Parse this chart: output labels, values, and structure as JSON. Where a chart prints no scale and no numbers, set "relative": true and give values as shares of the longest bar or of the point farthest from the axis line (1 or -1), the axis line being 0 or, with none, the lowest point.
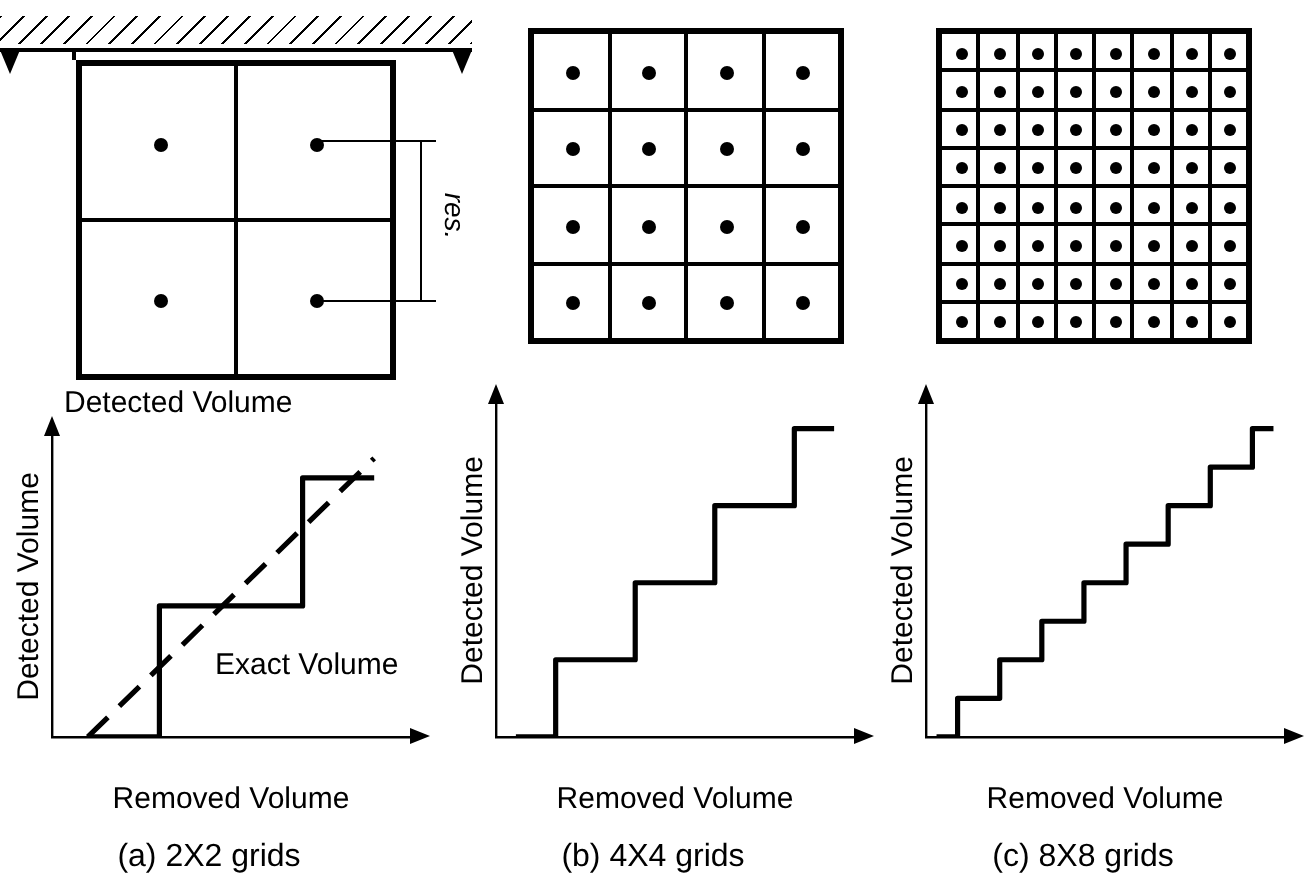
{
  "chart_data": [
    {
      "type": "step",
      "title": "(a) 2X2 grids",
      "xlabel": "Removed Volume",
      "ylabel": "Detected Volume",
      "relative": true,
      "annotations": [
        "res."
      ],
      "categories": [
        null,
        null,
        null,
        null,
        null
      ],
      "series": [
        {
          "name": "Detected Volume",
          "color": "#000000",
          "values": [
            0,
            0.47,
            0.47,
            0.93,
            0.93
          ]
        },
        {
          "name": "Exact Volume",
          "type": "line",
          "line_style": "dashed",
          "color": "#000000",
          "values": [
            0,
            0.25,
            0.5,
            0.75,
            1
          ]
        }
      ]
    },
    {
      "type": "step",
      "title": "(b) 4X4 grids",
      "xlabel": "Removed Volume",
      "ylabel": "Detected Volume",
      "relative": true,
      "categories": [
        null,
        null,
        null,
        null,
        null,
        null,
        null,
        null,
        null
      ],
      "series": [
        {
          "color": "#000000",
          "values": [
            0,
            0.25,
            0.25,
            0.5,
            0.5,
            0.75,
            0.75,
            1,
            1
          ]
        }
      ]
    },
    {
      "type": "step",
      "title": "(c) 8X8 grids",
      "xlabel": "Removed Volume",
      "ylabel": "Detected Volume",
      "relative": true,
      "categories": [
        null,
        null,
        null,
        null,
        null,
        null,
        null,
        null,
        null,
        null,
        null,
        null,
        null,
        null,
        null,
        null,
        null
      ],
      "series": [
        {
          "color": "#000000",
          "values": [
            0,
            0.125,
            0.125,
            0.25,
            0.25,
            0.375,
            0.375,
            0.5,
            0.5,
            0.625,
            0.625,
            0.75,
            0.75,
            0.875,
            0.875,
            1,
            1
          ]
        }
      ]
    }
  ]
}
